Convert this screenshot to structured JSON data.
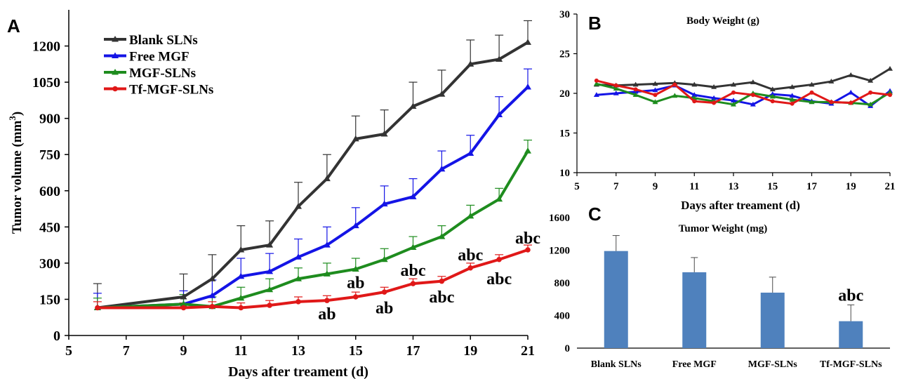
{
  "panels": {
    "a": {
      "letter": "A"
    },
    "b": {
      "letter": "B"
    },
    "c": {
      "letter": "C"
    }
  },
  "colors": {
    "blank": "#333333",
    "free": "#1414e6",
    "mgf": "#1e8c1e",
    "tf": "#e01818",
    "bar": "#4f81bd",
    "axis": "#000000"
  },
  "chart_data": [
    {
      "type": "line",
      "panel": "A",
      "title": "",
      "xlabel": "Days after treament (d)",
      "ylabel": "Tumor volume (mm3)",
      "xlim": [
        5,
        21
      ],
      "ylim": [
        0,
        1350
      ],
      "xticks": [
        5,
        7,
        9,
        11,
        13,
        15,
        17,
        19,
        21
      ],
      "yticks": [
        0,
        150,
        300,
        450,
        600,
        750,
        900,
        1050,
        1200
      ],
      "legend_position": "top-left",
      "series": [
        {
          "name": "Blank SLNs",
          "color": "#333333",
          "marker": "triangle",
          "x": [
            6,
            9,
            10,
            11,
            12,
            13,
            14,
            15,
            16,
            17,
            18,
            19,
            20,
            21
          ],
          "y": [
            115,
            160,
            235,
            355,
            375,
            535,
            650,
            815,
            835,
            950,
            1000,
            1125,
            1145,
            1215
          ],
          "err": [
            100,
            95,
            100,
            100,
            100,
            100,
            100,
            95,
            100,
            100,
            100,
            100,
            100,
            90
          ]
        },
        {
          "name": "Free MGF",
          "color": "#1414e6",
          "marker": "triangle",
          "x": [
            6,
            9,
            10,
            11,
            12,
            13,
            14,
            15,
            16,
            17,
            18,
            19,
            20,
            21
          ],
          "y": [
            115,
            130,
            165,
            245,
            265,
            325,
            375,
            455,
            545,
            575,
            690,
            755,
            915,
            1030
          ],
          "err": [
            60,
            55,
            65,
            75,
            75,
            75,
            75,
            75,
            75,
            75,
            75,
            75,
            75,
            75
          ]
        },
        {
          "name": "MGF-SLNs",
          "color": "#1e8c1e",
          "marker": "triangle",
          "x": [
            6,
            9,
            10,
            11,
            12,
            13,
            14,
            15,
            16,
            17,
            18,
            19,
            20,
            21
          ],
          "y": [
            115,
            130,
            120,
            155,
            190,
            235,
            255,
            275,
            315,
            365,
            410,
            495,
            565,
            765
          ],
          "err": [
            40,
            40,
            40,
            45,
            45,
            45,
            45,
            45,
            45,
            45,
            45,
            45,
            45,
            45
          ]
        },
        {
          "name": "Tf-MGF-SLNs",
          "color": "#e01818",
          "marker": "circle",
          "x": [
            6,
            9,
            10,
            11,
            12,
            13,
            14,
            15,
            16,
            17,
            18,
            19,
            20,
            21
          ],
          "y": [
            115,
            115,
            120,
            115,
            125,
            140,
            145,
            160,
            180,
            215,
            225,
            280,
            315,
            355
          ],
          "err": [
            25,
            20,
            20,
            20,
            20,
            20,
            20,
            20,
            20,
            20,
            20,
            20,
            20,
            20
          ]
        }
      ],
      "annotations": [
        {
          "x": 14,
          "y": 90,
          "text": "ab"
        },
        {
          "x": 15,
          "y": 220,
          "text": "ab"
        },
        {
          "x": 16,
          "y": 115,
          "text": "ab"
        },
        {
          "x": 17,
          "y": 270,
          "text": "abc"
        },
        {
          "x": 18,
          "y": 160,
          "text": "abc"
        },
        {
          "x": 19,
          "y": 335,
          "text": "abc"
        },
        {
          "x": 20,
          "y": 235,
          "text": "abc"
        },
        {
          "x": 21,
          "y": 405,
          "text": "abc"
        }
      ]
    },
    {
      "type": "line",
      "panel": "B",
      "title": "Body Weight (g)",
      "xlabel": "Days after treament (d)",
      "ylabel": "",
      "xlim": [
        5,
        21
      ],
      "ylim": [
        10,
        30
      ],
      "xticks": [
        5,
        7,
        9,
        11,
        13,
        15,
        17,
        19,
        21
      ],
      "yticks": [
        10,
        15,
        20,
        25,
        30
      ],
      "series": [
        {
          "color": "#333333",
          "marker": "triangle",
          "x": [
            6,
            7,
            8,
            9,
            10,
            11,
            12,
            13,
            14,
            15,
            16,
            17,
            18,
            19,
            20,
            21
          ],
          "y": [
            21.1,
            21.0,
            21.1,
            21.2,
            21.3,
            21.1,
            20.8,
            21.1,
            21.4,
            20.5,
            20.8,
            21.1,
            21.5,
            22.3,
            21.6,
            23.1
          ]
        },
        {
          "color": "#1414e6",
          "marker": "triangle",
          "x": [
            6,
            7,
            8,
            9,
            10,
            11,
            12,
            13,
            14,
            15,
            16,
            17,
            18,
            19,
            20,
            21
          ],
          "y": [
            19.8,
            20.0,
            20.2,
            20.4,
            21.0,
            19.8,
            19.4,
            19.1,
            18.6,
            19.9,
            19.7,
            19.0,
            18.7,
            20.1,
            18.4,
            20.3
          ]
        },
        {
          "color": "#1e8c1e",
          "marker": "triangle",
          "x": [
            6,
            7,
            8,
            9,
            10,
            11,
            12,
            13,
            14,
            15,
            16,
            17,
            18,
            19,
            20,
            21
          ],
          "y": [
            21.2,
            20.6,
            19.8,
            18.9,
            19.7,
            19.4,
            19.0,
            18.6,
            20.0,
            19.6,
            19.2,
            18.9,
            18.9,
            18.8,
            18.6,
            20.1
          ]
        },
        {
          "color": "#e01818",
          "marker": "circle",
          "x": [
            6,
            7,
            8,
            9,
            10,
            11,
            12,
            13,
            14,
            15,
            16,
            17,
            18,
            19,
            20,
            21
          ],
          "y": [
            21.6,
            21.0,
            20.5,
            19.8,
            21.1,
            19.0,
            18.8,
            20.1,
            19.8,
            19.0,
            18.7,
            20.1,
            18.9,
            18.8,
            20.1,
            19.8
          ]
        }
      ]
    },
    {
      "type": "bar",
      "panel": "C",
      "title": "Tumor Weight (mg)",
      "xlabel": "",
      "ylabel": "",
      "ylim": [
        0,
        1600
      ],
      "yticks": [
        0,
        400,
        800,
        1200,
        1600
      ],
      "categories": [
        "Blank SLNs",
        "Free MGF",
        "MGF-SLNs",
        "Tf-MGF-SLNs"
      ],
      "values": [
        1190,
        930,
        680,
        330
      ],
      "err": [
        190,
        180,
        190,
        200
      ],
      "annotations": [
        {
          "category": "Tf-MGF-SLNs",
          "text": "abc"
        }
      ]
    }
  ]
}
